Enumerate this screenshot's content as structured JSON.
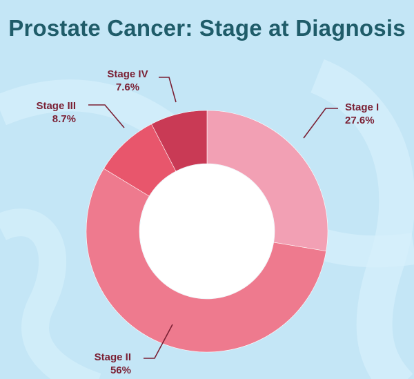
{
  "chart_data": {
    "type": "pie",
    "title": "Prostate Cancer: Stage at Diagnosis",
    "categories": [
      "Stage I",
      "Stage II",
      "Stage III",
      "Stage IV"
    ],
    "values": [
      27.6,
      56,
      8.7,
      7.6
    ],
    "value_labels": [
      "27.6%",
      "56%",
      "8.7%",
      "7.6%"
    ],
    "colors": [
      "#f2a0b4",
      "#ee7a8e",
      "#e8566c",
      "#c93a55"
    ],
    "donut": true
  },
  "colors": {
    "background": "#c4e6f6",
    "title": "#1f5c69",
    "label": "#7a1f33"
  }
}
